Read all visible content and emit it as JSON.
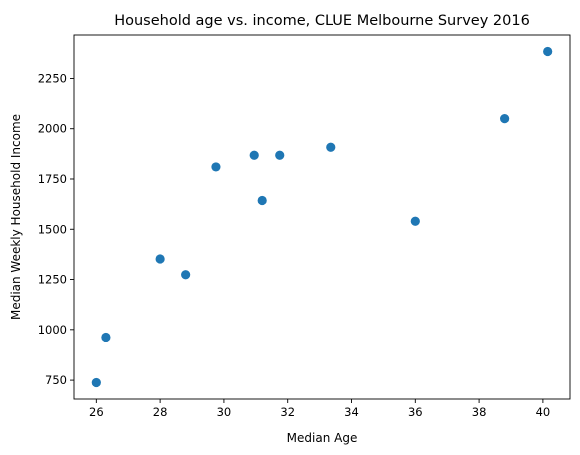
{
  "chart_data": {
    "type": "scatter",
    "title": "Household age vs. income, CLUE Melbourne Survey 2016",
    "xlabel": "Median Age",
    "ylabel": "Median Weekly Household Income",
    "xlim": [
      25.3,
      40.85
    ],
    "ylim": [
      656,
      2466
    ],
    "xticks": [
      26,
      28,
      30,
      32,
      34,
      36,
      38,
      40
    ],
    "yticks": [
      750,
      1000,
      1250,
      1500,
      1750,
      2000,
      2250
    ],
    "grid": false,
    "legend": "none",
    "marker_color": "#1f77b4",
    "series": [
      {
        "points": [
          {
            "x": 26.0,
            "y": 738
          },
          {
            "x": 26.3,
            "y": 962
          },
          {
            "x": 28.0,
            "y": 1352
          },
          {
            "x": 28.8,
            "y": 1274
          },
          {
            "x": 29.75,
            "y": 1810
          },
          {
            "x": 30.95,
            "y": 1868
          },
          {
            "x": 31.2,
            "y": 1643
          },
          {
            "x": 31.75,
            "y": 1868
          },
          {
            "x": 33.35,
            "y": 1908
          },
          {
            "x": 36.0,
            "y": 1540
          },
          {
            "x": 38.8,
            "y": 2050
          },
          {
            "x": 40.15,
            "y": 2384
          }
        ]
      }
    ]
  }
}
